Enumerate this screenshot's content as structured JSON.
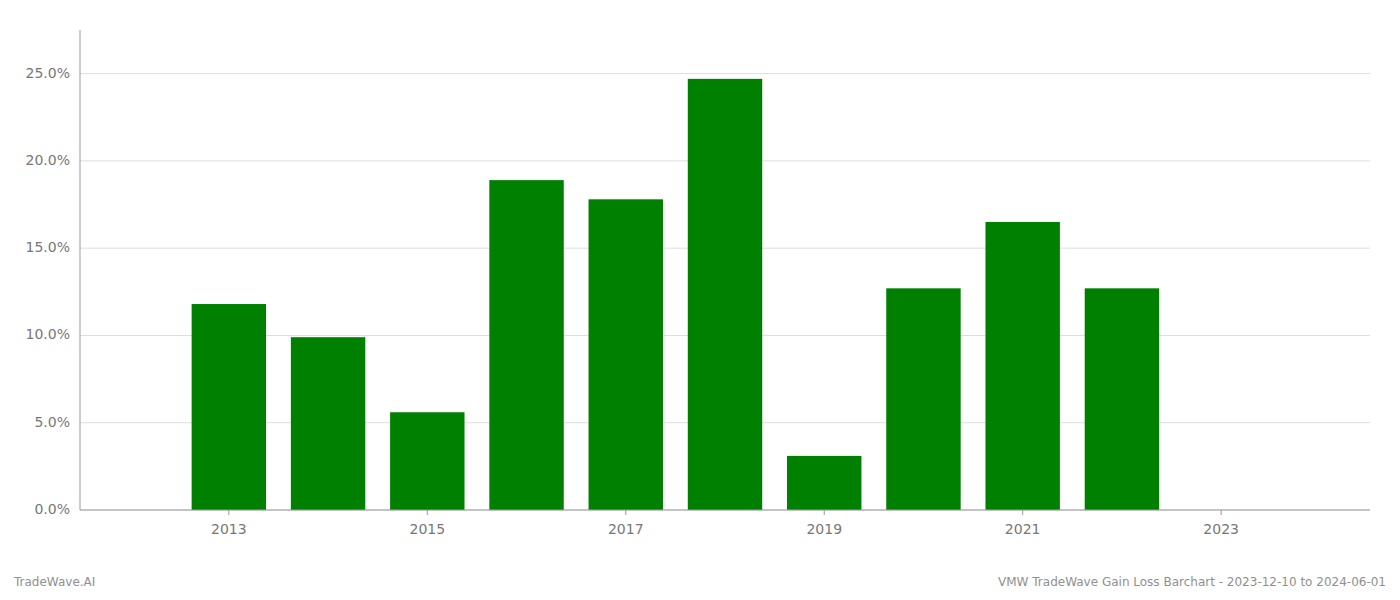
{
  "chart_data": {
    "type": "bar",
    "x": [
      2013,
      2014,
      2015,
      2016,
      2017,
      2018,
      2019,
      2020,
      2021,
      2022
    ],
    "values": [
      0.118,
      0.099,
      0.056,
      0.189,
      0.178,
      0.247,
      0.031,
      0.127,
      0.165,
      0.127
    ],
    "color": "#008000",
    "xlim": [
      2011.5,
      2024.5
    ],
    "xticks": [
      2013,
      2015,
      2017,
      2019,
      2021,
      2023
    ],
    "ylim": [
      0,
      0.275
    ],
    "yticks": [
      {
        "value": 0.0,
        "label": "0.0%"
      },
      {
        "value": 0.05,
        "label": "5.0%"
      },
      {
        "value": 0.1,
        "label": "10.0%"
      },
      {
        "value": 0.15,
        "label": "15.0%"
      },
      {
        "value": 0.2,
        "label": "20.0%"
      },
      {
        "value": 0.25,
        "label": "25.0%"
      }
    ],
    "grid": true,
    "annotations": [
      "TradeWave.AI",
      "VMW TradeWave Gain Loss Barchart - 2023-12-10 to 2024-06-01"
    ]
  }
}
